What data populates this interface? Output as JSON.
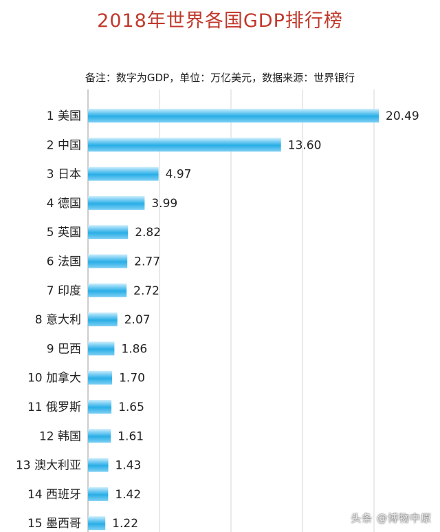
{
  "chart_data": {
    "type": "bar",
    "orientation": "horizontal",
    "title": "2018年世界各国GDP排行榜",
    "subtitle": "备注：数字为GDP，单位：万亿美元，数据来源：世界银行",
    "categories": [
      "1 美国",
      "2 中国",
      "3 日本",
      "4 德国",
      "5 英国",
      "6 法国",
      "7 印度",
      "8 意大利",
      "9 巴西",
      "10 加拿大",
      "11 俄罗斯",
      "12 韩国",
      "13 澳大利亚",
      "14 西班牙",
      "15 墨西哥"
    ],
    "values": [
      20.49,
      13.6,
      4.97,
      3.99,
      2.82,
      2.77,
      2.72,
      2.07,
      1.86,
      1.7,
      1.65,
      1.61,
      1.43,
      1.42,
      1.22
    ],
    "value_labels": [
      "20.49",
      "13.60",
      "4.97",
      "3.99",
      "2.82",
      "2.77",
      "2.72",
      "2.07",
      "1.86",
      "1.70",
      "1.65",
      "1.61",
      "1.43",
      "1.42",
      "1.22"
    ],
    "xlim": [
      0,
      20.49
    ],
    "grid": true,
    "bar_color": "#29aee6",
    "title_color": "#c0392b"
  },
  "watermark": "头条 @博物中原"
}
